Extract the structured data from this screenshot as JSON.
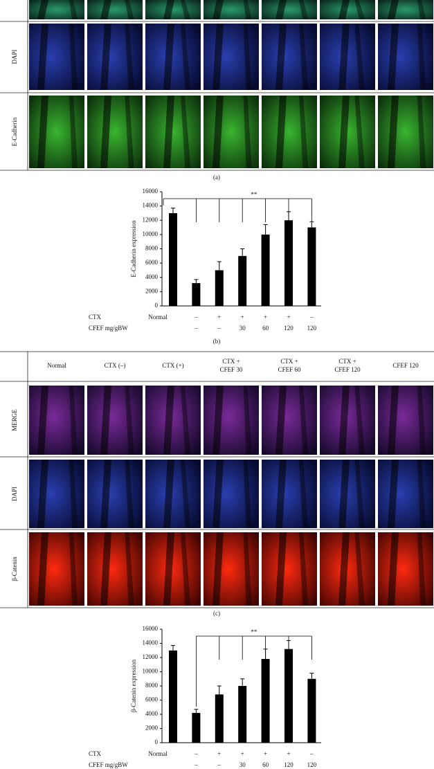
{
  "panel_a": {
    "row_labels": [
      "DAPI",
      "E-Cadherin"
    ],
    "caption": "(a)"
  },
  "panel_c": {
    "columns": [
      "Normal",
      "CTX (–)",
      "CTX (+)",
      "CTX +\nCFEF 30",
      "CTX +\nCFEF 60",
      "CTX +\nCFEF 120",
      "CFEF 120"
    ],
    "row_labels": [
      "MERGE",
      "DAPI",
      "β-Catenin"
    ],
    "caption": "(c)"
  },
  "chart_data": [
    {
      "type": "bar",
      "ylabel": "E-Cadherin expression",
      "row_labels": [
        "CTX",
        "CFEF mg/gBW"
      ],
      "categories": [
        "Normal",
        "–",
        "+",
        "+",
        "+",
        "+",
        "–"
      ],
      "cfef": [
        null,
        "–",
        "–",
        "30",
        "60",
        "120",
        "120"
      ],
      "values": [
        13000,
        3200,
        5000,
        7000,
        10000,
        12000,
        11000
      ],
      "errors": [
        700,
        500,
        1200,
        1000,
        1400,
        1200,
        800
      ],
      "color": "#000000",
      "ylim": [
        0,
        16000
      ],
      "yticks": [
        0,
        2000,
        4000,
        6000,
        8000,
        10000,
        12000,
        14000,
        16000
      ],
      "annotation": {
        "text": "**",
        "from": 0,
        "to": 6
      },
      "caption": "(b)"
    },
    {
      "type": "bar",
      "ylabel": "β-Catenin expression",
      "row_labels": [
        "CTX",
        "CFEF mg/gBW"
      ],
      "categories": [
        "Normal",
        "–",
        "+",
        "+",
        "+",
        "+",
        "–"
      ],
      "cfef": [
        null,
        "–",
        "–",
        "30",
        "60",
        "120",
        "120"
      ],
      "values": [
        13000,
        4200,
        6800,
        8000,
        11800,
        13200,
        9000
      ],
      "errors": [
        700,
        500,
        1200,
        1000,
        1400,
        1200,
        800
      ],
      "color": "#000000",
      "ylim": [
        0,
        16000
      ],
      "yticks": [
        0,
        2000,
        4000,
        6000,
        8000,
        10000,
        12000,
        14000,
        16000
      ],
      "annotation": {
        "text": "**",
        "from": 1,
        "to": 6
      }
    }
  ]
}
